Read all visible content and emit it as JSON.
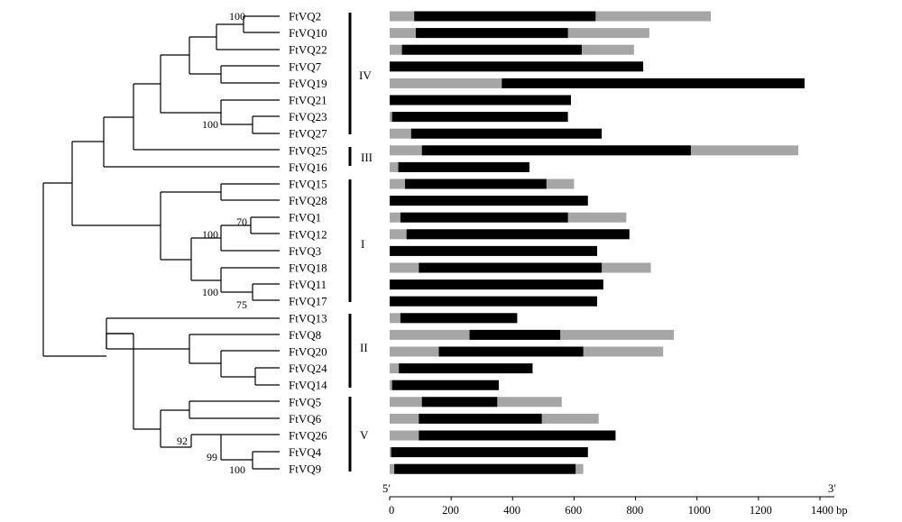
{
  "genes": [
    {
      "name": "FtVQ2",
      "start": 0,
      "cds_start": 80,
      "cds_end": 670,
      "end": 1045
    },
    {
      "name": "FtVQ10",
      "start": 0,
      "cds_start": 85,
      "cds_end": 580,
      "end": 845
    },
    {
      "name": "FtVQ22",
      "start": 0,
      "cds_start": 40,
      "cds_end": 625,
      "end": 795
    },
    {
      "name": "FtVQ7",
      "start": 0,
      "cds_start": 0,
      "cds_end": 825,
      "end": 825
    },
    {
      "name": "FtVQ19",
      "start": 0,
      "cds_start": 365,
      "cds_end": 1350,
      "end": 1350
    },
    {
      "name": "FtVQ21",
      "start": 0,
      "cds_start": 0,
      "cds_end": 590,
      "end": 590
    },
    {
      "name": "FtVQ23",
      "start": 0,
      "cds_start": 8,
      "cds_end": 580,
      "end": 580
    },
    {
      "name": "FtVQ27",
      "start": 0,
      "cds_start": 70,
      "cds_end": 690,
      "end": 690
    },
    {
      "name": "FtVQ25",
      "start": 0,
      "cds_start": 105,
      "cds_end": 980,
      "end": 1330
    },
    {
      "name": "FtVQ16",
      "start": 0,
      "cds_start": 28,
      "cds_end": 455,
      "end": 455
    },
    {
      "name": "FtVQ15",
      "start": 0,
      "cds_start": 50,
      "cds_end": 510,
      "end": 600
    },
    {
      "name": "FtVQ28",
      "start": 0,
      "cds_start": 0,
      "cds_end": 645,
      "end": 645
    },
    {
      "name": "FtVQ1",
      "start": 0,
      "cds_start": 35,
      "cds_end": 580,
      "end": 770
    },
    {
      "name": "FtVQ12",
      "start": 0,
      "cds_start": 55,
      "cds_end": 780,
      "end": 780
    },
    {
      "name": "FtVQ3",
      "start": 0,
      "cds_start": 0,
      "cds_end": 675,
      "end": 675
    },
    {
      "name": "FtVQ18",
      "start": 0,
      "cds_start": 95,
      "cds_end": 690,
      "end": 850
    },
    {
      "name": "FtVQ11",
      "start": 0,
      "cds_start": 0,
      "cds_end": 695,
      "end": 695
    },
    {
      "name": "FtVQ17",
      "start": 0,
      "cds_start": 0,
      "cds_end": 675,
      "end": 675
    },
    {
      "name": "FtVQ13",
      "start": 0,
      "cds_start": 35,
      "cds_end": 415,
      "end": 415
    },
    {
      "name": "FtVQ8",
      "start": 0,
      "cds_start": 260,
      "cds_end": 555,
      "end": 925
    },
    {
      "name": "FtVQ20",
      "start": 0,
      "cds_start": 160,
      "cds_end": 630,
      "end": 890
    },
    {
      "name": "FtVQ24",
      "start": 0,
      "cds_start": 30,
      "cds_end": 465,
      "end": 465
    },
    {
      "name": "FtVQ14",
      "start": 0,
      "cds_start": 8,
      "cds_end": 355,
      "end": 355
    },
    {
      "name": "FtVQ5",
      "start": 0,
      "cds_start": 105,
      "cds_end": 350,
      "end": 560
    },
    {
      "name": "FtVQ6",
      "start": 0,
      "cds_start": 95,
      "cds_end": 495,
      "end": 680
    },
    {
      "name": "FtVQ26",
      "start": 0,
      "cds_start": 95,
      "cds_end": 735,
      "end": 735
    },
    {
      "name": "FtVQ4",
      "start": 0,
      "cds_start": 5,
      "cds_end": 645,
      "end": 645
    },
    {
      "name": "FtVQ9",
      "start": 0,
      "cds_start": 15,
      "cds_end": 605,
      "end": 630
    }
  ],
  "groups": [
    {
      "label": "IV"
    },
    {
      "label": "III"
    },
    {
      "label": "I"
    },
    {
      "label": "II"
    },
    {
      "label": "V"
    }
  ],
  "bootstrap": [
    "100",
    "100",
    "70",
    "100",
    "100",
    "75",
    "92",
    "99",
    "100"
  ],
  "axis": {
    "ticks": [
      "0",
      "200",
      "400",
      "600",
      "800",
      "1000",
      "1200",
      "1400 bp"
    ],
    "five_prime": "5′",
    "three_prime": "3′"
  },
  "colors": {
    "cds": "#000000",
    "utr": "#a6a6a6",
    "tree": "#000000"
  }
}
